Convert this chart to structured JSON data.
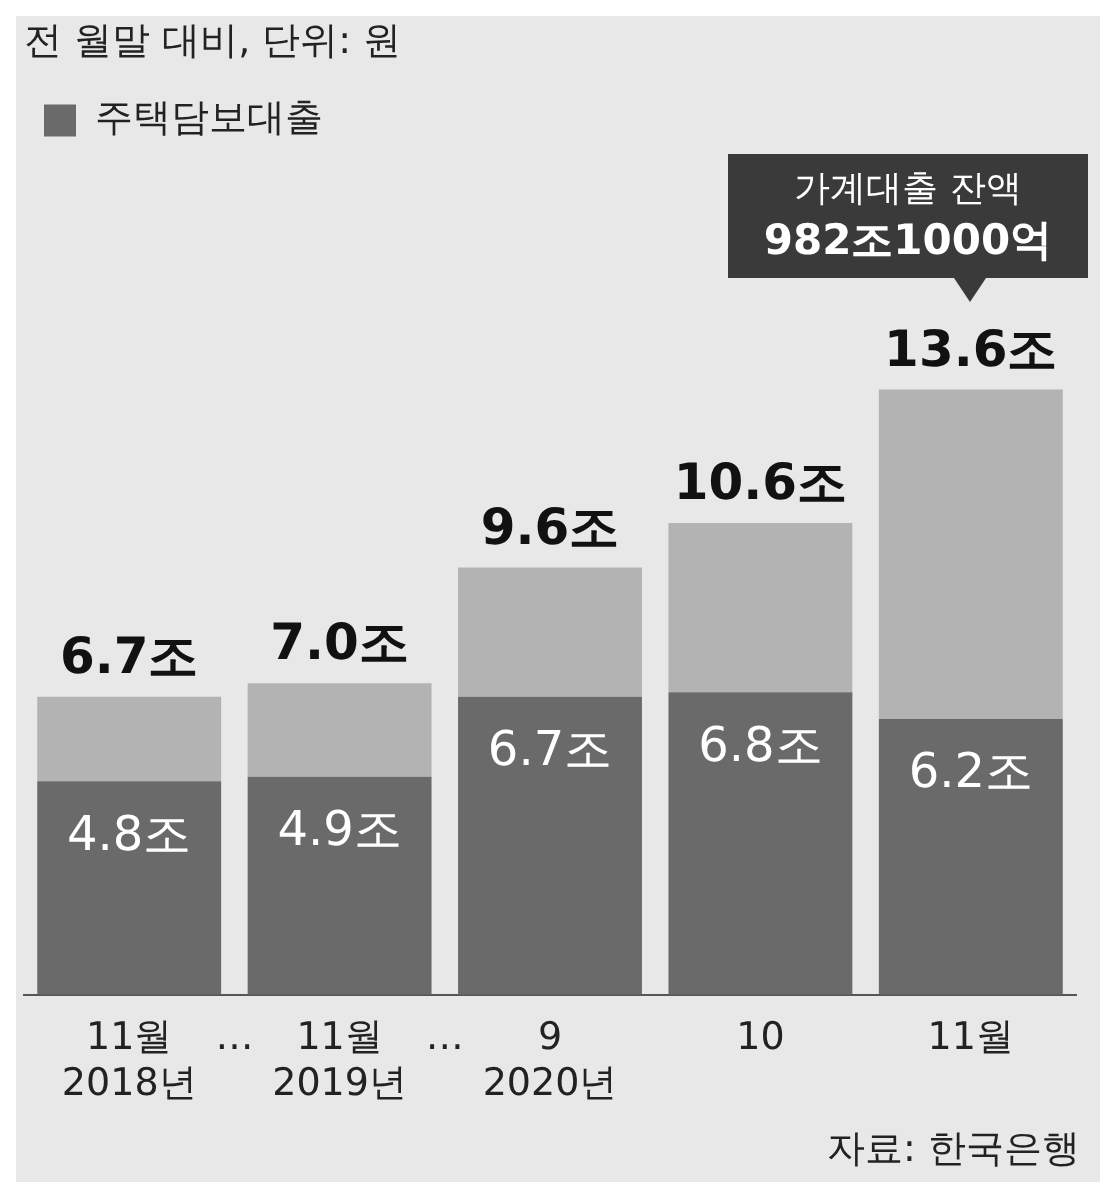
{
  "chart_data": {
    "type": "bar",
    "title": "전 월말 대비, 단위: 원",
    "categories": [
      "11월\n2018년",
      "11월\n2019년",
      "9\n2020년",
      "10",
      "11월"
    ],
    "stacked": true,
    "legend": "top left",
    "series": [
      {
        "name": "주택담보대출",
        "color": "#6a6a6a",
        "values": [
          4.8,
          4.9,
          6.7,
          6.8,
          6.2
        ],
        "value_labels": [
          "4.8조",
          "4.9조",
          "6.7조",
          "6.8조",
          "6.2조"
        ]
      },
      {
        "color": "#b3b3b3",
        "values": [
          1.9,
          2.1,
          2.9,
          3.8,
          7.4
        ]
      }
    ],
    "totals": [
      "6.7조",
      "7.0조",
      "9.6조",
      "10.6조",
      "13.6조"
    ],
    "annotations": [
      "…",
      "…",
      "가계대출 잔액\n982조1000억",
      "자료: 한국은행"
    ]
  }
}
